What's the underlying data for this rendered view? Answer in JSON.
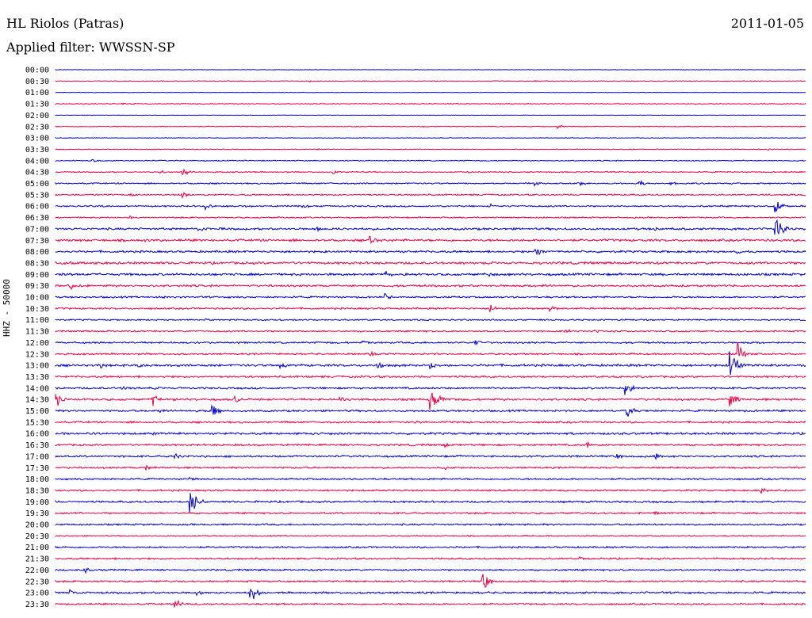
{
  "header": {
    "station": "HL Riolos (Patras)",
    "filter": "Applied filter: WWSSN-SP",
    "date": "2011-01-05",
    "channel_label": "HHZ - 50000"
  },
  "colors": {
    "blue": "#0000cc",
    "red": "#ee0044"
  },
  "chart_data": {
    "type": "line",
    "title": "HL Riolos (Patras)",
    "subtitle": "Applied filter: WWSSN-SP",
    "date": "2011-01-05",
    "ylabel": "HHZ - 50000",
    "grid": false,
    "legend": "none",
    "series": [
      {
        "time": "00:00",
        "color": "blue",
        "noise": 0.25,
        "events": []
      },
      {
        "time": "00:30",
        "color": "red",
        "noise": 0.35,
        "events": [
          [
            0.34,
            1.5
          ],
          [
            0.64,
            1.5
          ]
        ]
      },
      {
        "time": "01:00",
        "color": "blue",
        "noise": 0.25,
        "events": []
      },
      {
        "time": "01:30",
        "color": "red",
        "noise": 0.35,
        "events": [
          [
            0.09,
            1.5
          ],
          [
            0.44,
            1
          ]
        ]
      },
      {
        "time": "02:00",
        "color": "blue",
        "noise": 0.2,
        "events": []
      },
      {
        "time": "02:30",
        "color": "red",
        "noise": 0.4,
        "events": [
          [
            0.49,
            1.5
          ],
          [
            0.67,
            3
          ]
        ]
      },
      {
        "time": "03:00",
        "color": "blue",
        "noise": 0.25,
        "events": []
      },
      {
        "time": "03:30",
        "color": "red",
        "noise": 0.35,
        "events": [
          [
            0.35,
            1
          ],
          [
            0.77,
            1
          ],
          [
            0.95,
            1.5
          ]
        ]
      },
      {
        "time": "04:00",
        "color": "blue",
        "noise": 0.5,
        "events": [
          [
            0.05,
            3
          ],
          [
            0.35,
            1
          ]
        ]
      },
      {
        "time": "04:30",
        "color": "red",
        "noise": 0.6,
        "events": [
          [
            0.14,
            3
          ],
          [
            0.17,
            8
          ],
          [
            0.37,
            4
          ],
          [
            0.55,
            2
          ]
        ]
      },
      {
        "time": "05:00",
        "color": "blue",
        "noise": 0.7,
        "events": [
          [
            0.64,
            4
          ],
          [
            0.7,
            3
          ],
          [
            0.78,
            4
          ],
          [
            0.82,
            3
          ]
        ]
      },
      {
        "time": "05:30",
        "color": "red",
        "noise": 0.8,
        "events": [
          [
            0.1,
            3
          ],
          [
            0.17,
            5
          ]
        ]
      },
      {
        "time": "06:00",
        "color": "blue",
        "noise": 0.8,
        "events": [
          [
            0.06,
            2
          ],
          [
            0.2,
            5
          ],
          [
            0.33,
            4
          ],
          [
            0.58,
            4
          ],
          [
            0.96,
            12
          ]
        ]
      },
      {
        "time": "06:30",
        "color": "red",
        "noise": 0.7,
        "events": [
          [
            0.1,
            3
          ],
          [
            0.3,
            2
          ]
        ]
      },
      {
        "time": "07:00",
        "color": "blue",
        "noise": 1.1,
        "events": [
          [
            0.19,
            5
          ],
          [
            0.35,
            3
          ],
          [
            0.8,
            4
          ],
          [
            0.96,
            22
          ]
        ]
      },
      {
        "time": "07:30",
        "color": "red",
        "noise": 1.2,
        "events": [
          [
            0.12,
            3
          ],
          [
            0.42,
            8
          ]
        ]
      },
      {
        "time": "08:00",
        "color": "blue",
        "noise": 1.1,
        "events": [
          [
            0.36,
            2
          ],
          [
            0.64,
            9
          ],
          [
            0.91,
            4
          ]
        ]
      },
      {
        "time": "08:30",
        "color": "red",
        "noise": 1.2,
        "events": [
          [
            0.02,
            3
          ],
          [
            0.57,
            2
          ]
        ]
      },
      {
        "time": "09:00",
        "color": "blue",
        "noise": 1.2,
        "events": [
          [
            0.01,
            5
          ],
          [
            0.44,
            6
          ],
          [
            0.58,
            4
          ]
        ]
      },
      {
        "time": "09:30",
        "color": "red",
        "noise": 1.1,
        "events": [
          [
            0.02,
            6
          ],
          [
            0.65,
            3
          ],
          [
            0.82,
            3
          ],
          [
            0.88,
            3
          ]
        ]
      },
      {
        "time": "10:00",
        "color": "blue",
        "noise": 0.9,
        "events": [
          [
            0.14,
            3
          ],
          [
            0.44,
            5
          ]
        ]
      },
      {
        "time": "10:30",
        "color": "red",
        "noise": 0.9,
        "events": [
          [
            0.58,
            6
          ],
          [
            0.66,
            5
          ]
        ]
      },
      {
        "time": "11:00",
        "color": "blue",
        "noise": 0.7,
        "events": [
          [
            0.2,
            2
          ]
        ]
      },
      {
        "time": "11:30",
        "color": "red",
        "noise": 0.8,
        "events": [
          [
            0.68,
            4
          ],
          [
            0.72,
            3
          ]
        ]
      },
      {
        "time": "12:00",
        "color": "blue",
        "noise": 0.9,
        "events": [
          [
            0.41,
            3
          ],
          [
            0.56,
            5
          ]
        ]
      },
      {
        "time": "12:30",
        "color": "red",
        "noise": 0.9,
        "events": [
          [
            0.42,
            4
          ],
          [
            0.91,
            16
          ]
        ]
      },
      {
        "time": "13:00",
        "color": "blue",
        "noise": 1.2,
        "events": [
          [
            0.06,
            5
          ],
          [
            0.11,
            5
          ],
          [
            0.3,
            8
          ],
          [
            0.43,
            5
          ],
          [
            0.5,
            6
          ],
          [
            0.9,
            22
          ]
        ]
      },
      {
        "time": "13:30",
        "color": "red",
        "noise": 1.0,
        "events": [
          [
            0.75,
            3
          ]
        ]
      },
      {
        "time": "14:00",
        "color": "blue",
        "noise": 1.0,
        "events": [
          [
            0.09,
            4
          ],
          [
            0.13,
            3
          ],
          [
            0.76,
            13
          ]
        ]
      },
      {
        "time": "14:30",
        "color": "red",
        "noise": 1.1,
        "events": [
          [
            0.0,
            12
          ],
          [
            0.13,
            10
          ],
          [
            0.24,
            6
          ],
          [
            0.38,
            5
          ],
          [
            0.5,
            28
          ],
          [
            0.9,
            14
          ]
        ]
      },
      {
        "time": "15:00",
        "color": "blue",
        "noise": 1.0,
        "events": [
          [
            0.14,
            5
          ],
          [
            0.21,
            9
          ],
          [
            0.76,
            14
          ]
        ]
      },
      {
        "time": "15:30",
        "color": "red",
        "noise": 1.0,
        "events": [
          [
            0.48,
            4
          ]
        ]
      },
      {
        "time": "16:00",
        "color": "blue",
        "noise": 1.1,
        "events": [
          [
            0.01,
            3
          ],
          [
            0.05,
            3
          ],
          [
            0.13,
            3
          ],
          [
            0.32,
            2
          ]
        ]
      },
      {
        "time": "16:30",
        "color": "red",
        "noise": 1.0,
        "events": [
          [
            0.24,
            3
          ],
          [
            0.52,
            4
          ],
          [
            0.71,
            5
          ]
        ]
      },
      {
        "time": "17:00",
        "color": "blue",
        "noise": 1.0,
        "events": [
          [
            0.16,
            5
          ],
          [
            0.54,
            3
          ],
          [
            0.75,
            4
          ],
          [
            0.8,
            5
          ]
        ]
      },
      {
        "time": "17:30",
        "color": "red",
        "noise": 0.9,
        "events": [
          [
            0.12,
            5
          ],
          [
            0.52,
            3
          ]
        ]
      },
      {
        "time": "18:00",
        "color": "blue",
        "noise": 0.9,
        "events": [
          [
            0.18,
            3
          ]
        ]
      },
      {
        "time": "18:30",
        "color": "red",
        "noise": 0.9,
        "events": [
          [
            0.94,
            6
          ]
        ]
      },
      {
        "time": "19:00",
        "color": "blue",
        "noise": 1.0,
        "events": [
          [
            0.18,
            22
          ],
          [
            0.86,
            3
          ]
        ]
      },
      {
        "time": "19:30",
        "color": "red",
        "noise": 0.9,
        "events": [
          [
            0.8,
            3
          ]
        ]
      },
      {
        "time": "20:00",
        "color": "blue",
        "noise": 0.9,
        "events": []
      },
      {
        "time": "20:30",
        "color": "red",
        "noise": 0.6,
        "events": []
      },
      {
        "time": "21:00",
        "color": "blue",
        "noise": 0.9,
        "events": [
          [
            0.85,
            2
          ]
        ]
      },
      {
        "time": "21:30",
        "color": "red",
        "noise": 0.9,
        "events": [
          [
            0.7,
            3
          ]
        ]
      },
      {
        "time": "22:00",
        "color": "blue",
        "noise": 0.9,
        "events": [
          [
            0.04,
            4
          ]
        ]
      },
      {
        "time": "22:30",
        "color": "red",
        "noise": 0.9,
        "events": [
          [
            0.57,
            14
          ]
        ]
      },
      {
        "time": "23:00",
        "color": "blue",
        "noise": 1.0,
        "events": [
          [
            0.02,
            8
          ],
          [
            0.19,
            5
          ],
          [
            0.26,
            14
          ]
        ]
      },
      {
        "time": "23:30",
        "color": "red",
        "noise": 0.9,
        "events": [
          [
            0.16,
            10
          ]
        ]
      }
    ]
  }
}
